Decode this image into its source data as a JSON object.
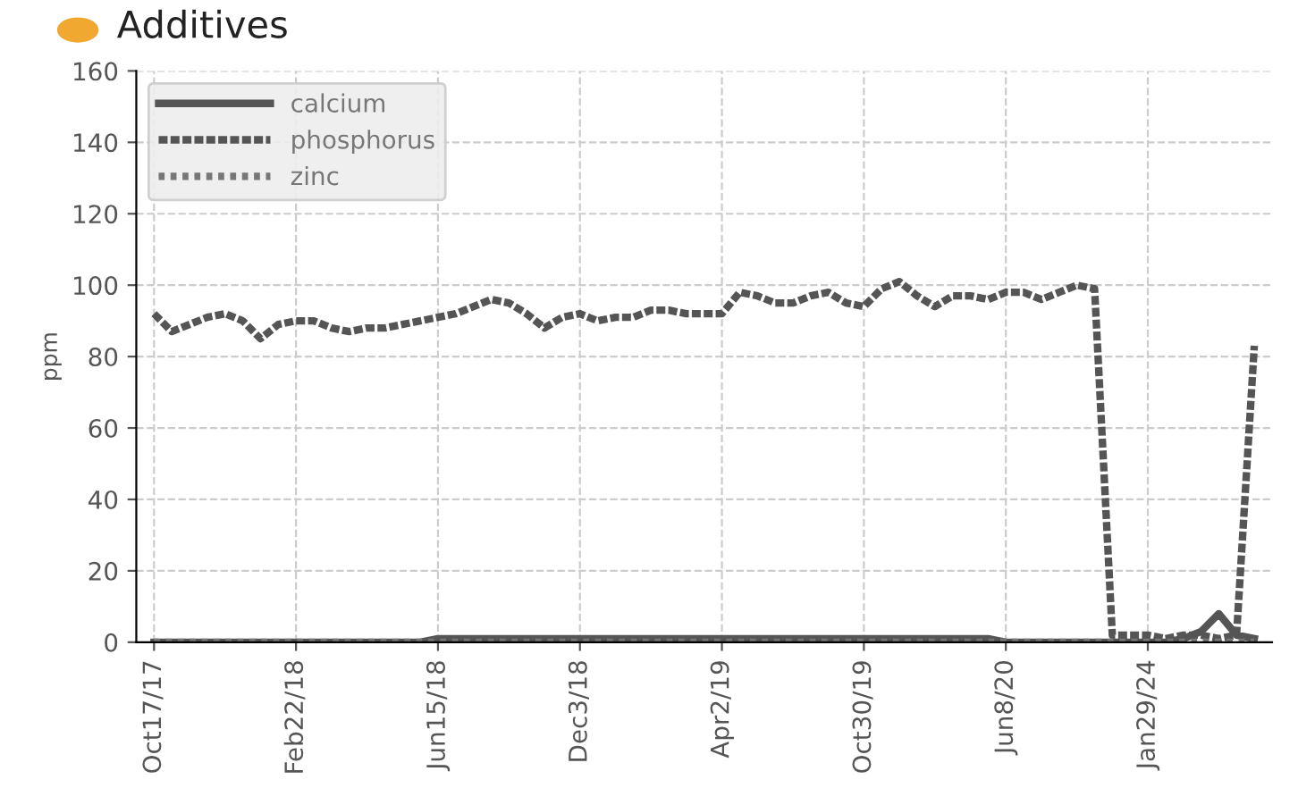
{
  "chart_data": {
    "type": "line",
    "title": "Additives",
    "ylabel": "ppm",
    "categories": [
      "Oct17/17",
      null,
      null,
      null,
      null,
      null,
      null,
      null,
      "Feb22/18",
      null,
      null,
      null,
      null,
      null,
      null,
      null,
      "Jun15/18",
      null,
      null,
      null,
      null,
      null,
      null,
      null,
      "Dec3/18",
      null,
      null,
      null,
      null,
      null,
      null,
      null,
      "Apr2/19",
      null,
      null,
      null,
      null,
      null,
      null,
      null,
      "Oct30/19",
      null,
      null,
      null,
      null,
      null,
      null,
      null,
      "Jun8/20",
      null,
      null,
      null,
      null,
      null,
      null,
      null,
      "Jan29/24",
      null,
      null,
      null,
      null,
      null,
      null
    ],
    "series": [
      {
        "name": "calcium",
        "color": "#555555",
        "line_style": "solid",
        "values": [
          0,
          0,
          0,
          0,
          0,
          0,
          0,
          0,
          0,
          0,
          0,
          0,
          0,
          0,
          0,
          0,
          1,
          1,
          1,
          1,
          1,
          1,
          1,
          1,
          1,
          1,
          1,
          1,
          1,
          1,
          1,
          1,
          1,
          1,
          1,
          1,
          1,
          1,
          1,
          1,
          1,
          1,
          1,
          1,
          1,
          1,
          1,
          1,
          0,
          0,
          0,
          0,
          0,
          0,
          0,
          0,
          0,
          0,
          1,
          3,
          8,
          2,
          1
        ]
      },
      {
        "name": "phosphorus",
        "color": "#555555",
        "line_style": "dashed",
        "values": [
          92,
          87,
          89,
          91,
          92,
          90,
          85,
          89,
          90,
          90,
          88,
          87,
          88,
          88,
          89,
          90,
          91,
          92,
          94,
          96,
          95,
          92,
          88,
          91,
          92,
          90,
          91,
          91,
          93,
          93,
          92,
          92,
          92,
          98,
          97,
          95,
          95,
          97,
          98,
          95,
          94,
          99,
          101,
          97,
          94,
          97,
          97,
          96,
          98,
          98,
          96,
          98,
          100,
          99,
          2,
          2,
          2,
          1,
          2,
          2,
          1,
          2,
          83
        ]
      },
      {
        "name": "zinc",
        "color": "#777777",
        "line_style": "dotted",
        "values": [
          0,
          0,
          0,
          0,
          0,
          0,
          0,
          0,
          0,
          0,
          0,
          0,
          0,
          0,
          0,
          0,
          0,
          0,
          0,
          0,
          0,
          0,
          0,
          0,
          0,
          0,
          0,
          0,
          0,
          0,
          0,
          0,
          0,
          0,
          0,
          0,
          0,
          0,
          0,
          0,
          0,
          0,
          0,
          0,
          0,
          0,
          0,
          0,
          0,
          0,
          0,
          0,
          0,
          0,
          0,
          0,
          0,
          0,
          0,
          0,
          0,
          0,
          0
        ]
      }
    ],
    "ylim": [
      0,
      160
    ],
    "yticks": [
      0,
      20,
      40,
      60,
      80,
      100,
      120,
      140,
      160
    ],
    "grid": true,
    "legend": "top left",
    "marker": "none"
  }
}
